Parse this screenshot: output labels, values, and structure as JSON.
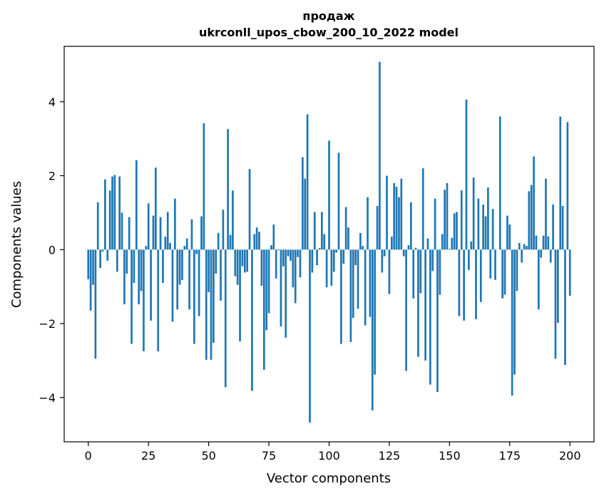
{
  "chart_data": {
    "type": "bar",
    "title": "продаж",
    "subtitle": "ukrconll_upos_cbow_200_10_2022 model",
    "xlabel": "Vector components",
    "ylabel": "Components values",
    "xlim": [
      -10,
      210
    ],
    "ylim": [
      -5.2,
      5.5
    ],
    "xticks": [
      0,
      25,
      50,
      75,
      100,
      125,
      150,
      175,
      200
    ],
    "yticks": [
      -4,
      -2,
      0,
      2,
      4
    ],
    "xtick_labels": [
      "0",
      "25",
      "50",
      "75",
      "100",
      "125",
      "150",
      "175",
      "200"
    ],
    "ytick_labels": [
      "−4",
      "−2",
      "0",
      "2",
      "4"
    ],
    "bar_color": "#1f77b4",
    "grid": false,
    "values": [
      -0.8,
      -1.65,
      -0.95,
      -2.95,
      1.28,
      -0.5,
      -0.05,
      1.9,
      -0.3,
      1.6,
      1.98,
      2.02,
      -0.6,
      1.98,
      1.0,
      -1.48,
      -0.65,
      0.88,
      -2.55,
      -0.9,
      2.42,
      -1.48,
      -1.12,
      -2.75,
      0.1,
      1.25,
      -1.92,
      0.92,
      2.22,
      -2.75,
      0.88,
      -0.9,
      0.35,
      1.02,
      0.18,
      -1.95,
      1.38,
      -1.62,
      -0.95,
      -0.82,
      0.1,
      0.3,
      -1.62,
      0.82,
      -2.55,
      -0.12,
      -1.8,
      0.9,
      3.42,
      -2.98,
      -1.15,
      -2.98,
      -2.52,
      -0.65,
      0.45,
      -1.38,
      1.08,
      -3.72,
      3.26,
      0.4,
      1.6,
      -0.72,
      -0.95,
      -2.48,
      -0.45,
      -0.62,
      -0.6,
      2.18,
      -3.82,
      0.42,
      0.6,
      0.48,
      -0.98,
      -3.25,
      -2.18,
      -1.72,
      0.12,
      0.68,
      -0.78,
      -0.02,
      -2.08,
      -0.45,
      -2.38,
      -0.18,
      -0.3,
      -1.02,
      -1.45,
      -0.2,
      -0.75,
      2.5,
      1.92,
      3.66,
      -4.68,
      -0.62,
      1.02,
      -0.42,
      0.04,
      1.02,
      0.42,
      -1.02,
      2.95,
      -0.98,
      -0.6,
      -0.08,
      2.62,
      -2.55,
      -0.38,
      1.15,
      0.6,
      -2.5,
      -1.85,
      -0.42,
      -1.6,
      0.45,
      0.1,
      -2.05,
      1.42,
      -1.82,
      -4.35,
      -3.38,
      1.18,
      5.08,
      -0.62,
      -0.18,
      2.0,
      -1.2,
      0.35,
      1.8,
      1.7,
      1.42,
      1.92,
      -0.18,
      -3.28,
      0.12,
      1.28,
      -1.32,
      0.05,
      -2.9,
      -1.18,
      2.2,
      -3.0,
      0.3,
      -3.65,
      -0.58,
      1.38,
      -3.85,
      -1.22,
      0.42,
      1.62,
      1.8,
      0.02,
      0.32,
      0.98,
      1.02,
      -1.8,
      1.6,
      -1.92,
      4.06,
      -0.55,
      0.22,
      1.95,
      -1.88,
      1.38,
      -1.42,
      1.22,
      0.9,
      1.68,
      -0.78,
      1.1,
      -0.82,
      0.0,
      3.6,
      -1.32,
      -1.22,
      0.92,
      0.68,
      -3.95,
      -3.38,
      -1.12,
      0.18,
      -0.35,
      0.15,
      0.1,
      1.58,
      1.75,
      2.52,
      0.38,
      -1.62,
      -0.22,
      0.38,
      1.92,
      0.36,
      -0.35,
      1.22,
      -2.95,
      -1.98,
      3.6,
      1.18,
      -3.12,
      3.45,
      -1.25
    ]
  }
}
